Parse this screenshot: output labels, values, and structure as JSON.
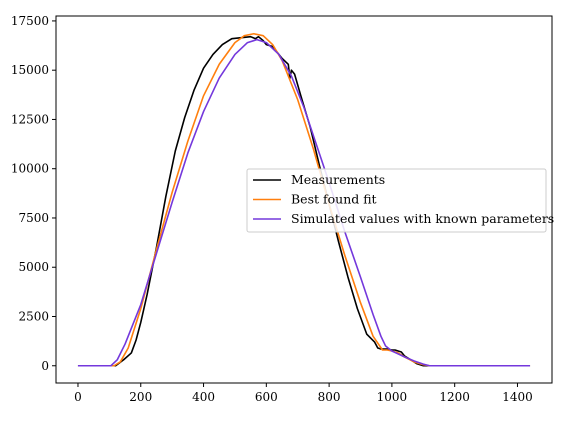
{
  "chart_data": {
    "type": "line",
    "xlim": [
      -70,
      1510
    ],
    "ylim": [
      -875,
      17750
    ],
    "xticks": [
      0,
      200,
      400,
      600,
      800,
      1000,
      1200,
      1400
    ],
    "yticks": [
      0,
      2500,
      5000,
      7500,
      10000,
      12500,
      15000,
      17500
    ],
    "grid": false,
    "legend_position": "center-right",
    "series": [
      {
        "name": "Measurements",
        "color": "#000000",
        "x": [
          0,
          120,
          145,
          170,
          185,
          200,
          220,
          250,
          280,
          310,
          340,
          370,
          400,
          430,
          460,
          490,
          520,
          550,
          565,
          575,
          590,
          600,
          620,
          650,
          670,
          675,
          680,
          690,
          710,
          740,
          770,
          800,
          830,
          860,
          890,
          920,
          945,
          955,
          965,
          975,
          985,
          1000,
          1010,
          1020,
          1030,
          1040,
          1060,
          1080,
          1100,
          1120,
          1440
        ],
        "y": [
          0,
          0,
          300,
          650,
          1300,
          2200,
          3600,
          6000,
          8600,
          10900,
          12600,
          14000,
          15100,
          15800,
          16300,
          16600,
          16650,
          16700,
          16600,
          16700,
          16500,
          16300,
          16200,
          15600,
          15300,
          14600,
          15000,
          14800,
          13700,
          12100,
          10100,
          8200,
          6300,
          4500,
          2900,
          1600,
          1200,
          900,
          850,
          850,
          850,
          800,
          800,
          750,
          700,
          500,
          300,
          100,
          0,
          0,
          0
        ]
      },
      {
        "name": "Best found fit",
        "color": "#ff7f0e",
        "x": [
          0,
          115,
          135,
          160,
          200,
          250,
          300,
          350,
          400,
          450,
          500,
          530,
          560,
          590,
          620,
          650,
          700,
          750,
          800,
          850,
          900,
          940,
          970,
          985,
          1000,
          1020,
          1040,
          1070,
          1100,
          1120,
          1440
        ],
        "y": [
          0,
          0,
          200,
          900,
          2900,
          5900,
          8800,
          11400,
          13700,
          15300,
          16400,
          16750,
          16850,
          16750,
          16300,
          15500,
          13500,
          11000,
          8200,
          5600,
          3200,
          1500,
          800,
          800,
          750,
          650,
          450,
          200,
          50,
          0,
          0
        ]
      },
      {
        "name": "Simulated values with known parameters",
        "color": "#7438dc",
        "x": [
          0,
          105,
          125,
          150,
          200,
          250,
          300,
          350,
          400,
          450,
          500,
          540,
          570,
          600,
          640,
          680,
          720,
          760,
          800,
          850,
          900,
          940,
          965,
          980,
          1000,
          1020,
          1040,
          1070,
          1100,
          1120,
          1440
        ],
        "y": [
          0,
          0,
          300,
          1100,
          3100,
          5700,
          8300,
          10800,
          12900,
          14600,
          15800,
          16400,
          16550,
          16400,
          15800,
          14700,
          13100,
          11200,
          9300,
          6800,
          4500,
          2600,
          1500,
          1000,
          750,
          600,
          450,
          250,
          80,
          0,
          0
        ]
      }
    ]
  }
}
